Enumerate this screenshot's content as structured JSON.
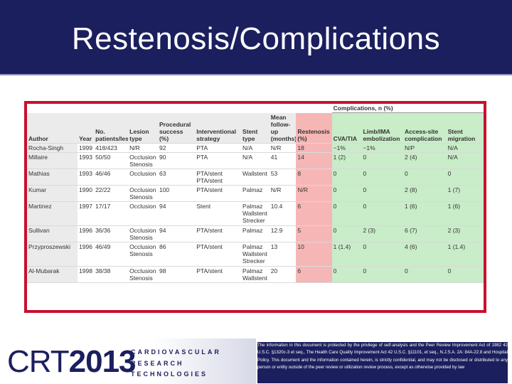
{
  "slide": {
    "title": "Restenosis/Complications"
  },
  "table": {
    "group_header": "Complications, n (%)",
    "columns": [
      "Author",
      "Year",
      "No. patients/lesions",
      "Lesion type",
      "Procedural success (%)",
      "Interventional strategy",
      "Stent type",
      "Mean follow-up (months)",
      "Restenosis (%)",
      "CVA/TIA",
      "Limb/IMA embolization",
      "Access-site complication",
      "Stent migration"
    ],
    "rows": [
      [
        "Rocha-Singh",
        "1999",
        "418/423",
        "N/R",
        "92",
        "PTA",
        "N/A",
        "N/R",
        "18",
        "~1%",
        "~1%",
        "N/P",
        "N/A"
      ],
      [
        "Millaire",
        "1993",
        "50/50",
        "Occlusion Stenosis",
        "90",
        "PTA",
        "N/A",
        "41",
        "14",
        "1 (2)",
        "0",
        "2 (4)",
        "N/A"
      ],
      [
        "Mathias",
        "1993",
        "46/46",
        "Occlusion",
        "63",
        "PTA/stent PTA/stent",
        "Wallstent",
        "53",
        "8",
        "0",
        "0",
        "0",
        "0"
      ],
      [
        "Kumar",
        "1990",
        "22/22",
        "Occlusion Stenosis",
        "100",
        "PTA/stent",
        "Palmaz",
        "N/R",
        "N/R",
        "0",
        "0",
        "2 (8)",
        "1 (7)"
      ],
      [
        "Martinez",
        "1997",
        "17/17",
        "Occlusion",
        "94",
        "Stent",
        "Palmaz Wallstent Strecker",
        "10.4",
        "6",
        "0",
        "0",
        "1 (6)",
        "1 (6)"
      ],
      [
        "Sullivan",
        "1996",
        "36/36",
        "Occlusion Stenosis",
        "94",
        "PTA/stent",
        "Palmaz",
        "12.9",
        "5",
        "0",
        "2 (3)",
        "6 (7)",
        "2 (3)"
      ],
      [
        "Przyproszewski",
        "1996",
        "46/49",
        "Occlusion Stenosis",
        "86",
        "PTA/stent",
        "Palmaz Wallstent Strecker",
        "13",
        "10",
        "1 (1.4)",
        "0",
        "4 (6)",
        "1 (1.4)"
      ],
      [
        "Al-Mubarak",
        "1998",
        "38/38",
        "Occlusion Stenosis",
        "98",
        "PTA/stent",
        "Palmaz Wallstent",
        "20",
        "6",
        "0",
        "0",
        "0",
        "0"
      ]
    ]
  },
  "footer": {
    "logo_crt": "CRT",
    "logo_year": "2013",
    "logo_line1": "CARDIOVASCULAR",
    "logo_line2": "RESEARCH",
    "logo_line3": "TECHNOLOGIES",
    "legal_text": "The information in this document is protected by the privilege of self-analysis and the Peer Review Improvement Act of 1982 42 U.S.C. §1320c-3 et seq., The Health Care Quality Improvement Act 42 U.S.C. §11101, et seq., N.J.S.A. 2A: 84A-22.8 and Hospital Policy. This document and the information contained herein, is strictly confidential, and may not be disclosed or distributed to any person or entity outside of the peer review or utilization review process, except as otherwise provided by law"
  }
}
